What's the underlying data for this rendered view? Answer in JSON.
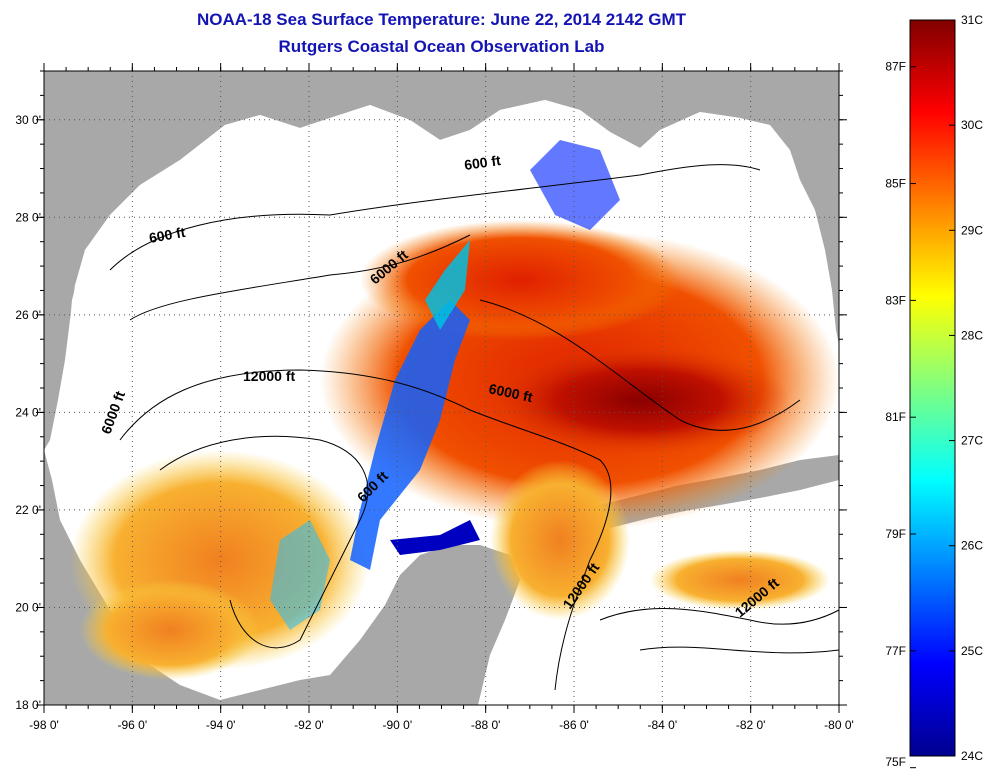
{
  "title": "NOAA-18 Sea Surface Temperature:  June 22, 2014 2142 GMT",
  "subtitle": "Rutgers Coastal Ocean Observation Lab",
  "colors": {
    "title": "#1414b4",
    "land": "#a8a8a8",
    "cloud": "#ffffff",
    "contour": "#000000"
  },
  "map": {
    "lon_range": [
      -98,
      -80
    ],
    "lat_range": [
      18,
      31
    ],
    "x_ticks": [
      {
        "lon": -98,
        "label": "-98 0'"
      },
      {
        "lon": -96,
        "label": "-96 0'"
      },
      {
        "lon": -94,
        "label": "-94 0'"
      },
      {
        "lon": -92,
        "label": "-92 0'"
      },
      {
        "lon": -90,
        "label": "-90 0'"
      },
      {
        "lon": -88,
        "label": "-88 0'"
      },
      {
        "lon": -86,
        "label": "-86 0'"
      },
      {
        "lon": -84,
        "label": "-84 0'"
      },
      {
        "lon": -82,
        "label": "-82 0'"
      },
      {
        "lon": -80,
        "label": "-80 0'"
      }
    ],
    "y_ticks": [
      {
        "lat": 18,
        "label": "18 0'"
      },
      {
        "lat": 20,
        "label": "20 0'"
      },
      {
        "lat": 22,
        "label": "22 0'"
      },
      {
        "lat": 24,
        "label": "24 0'"
      },
      {
        "lat": 26,
        "label": "26 0'"
      },
      {
        "lat": 28,
        "label": "28 0'"
      },
      {
        "lat": 30,
        "label": "30 0'"
      }
    ],
    "contour_labels": [
      "600 ft",
      "600 ft",
      "600 ft",
      "6000 ft",
      "6000 ft",
      "6000 ft",
      "12000 ft",
      "12000 ft",
      "12000 ft"
    ]
  },
  "colorbar": {
    "celsius": [
      {
        "value": 24,
        "label": "24C"
      },
      {
        "value": 25,
        "label": "25C"
      },
      {
        "value": 26,
        "label": "26C"
      },
      {
        "value": 27,
        "label": "27C"
      },
      {
        "value": 28,
        "label": "28C"
      },
      {
        "value": 29,
        "label": "29C"
      },
      {
        "value": 30,
        "label": "30C"
      },
      {
        "value": 31,
        "label": "31C"
      }
    ],
    "fahrenheit": [
      {
        "value": 75,
        "label": "75F"
      },
      {
        "value": 77,
        "label": "77F"
      },
      {
        "value": 79,
        "label": "79F"
      },
      {
        "value": 81,
        "label": "81F"
      },
      {
        "value": 83,
        "label": "83F"
      },
      {
        "value": 85,
        "label": "85F"
      },
      {
        "value": 87,
        "label": "87F"
      }
    ],
    "stops": [
      "#00008f",
      "#0000ff",
      "#0080ff",
      "#00ffff",
      "#80ff80",
      "#ffff00",
      "#ff8000",
      "#ff0000",
      "#800000"
    ]
  }
}
